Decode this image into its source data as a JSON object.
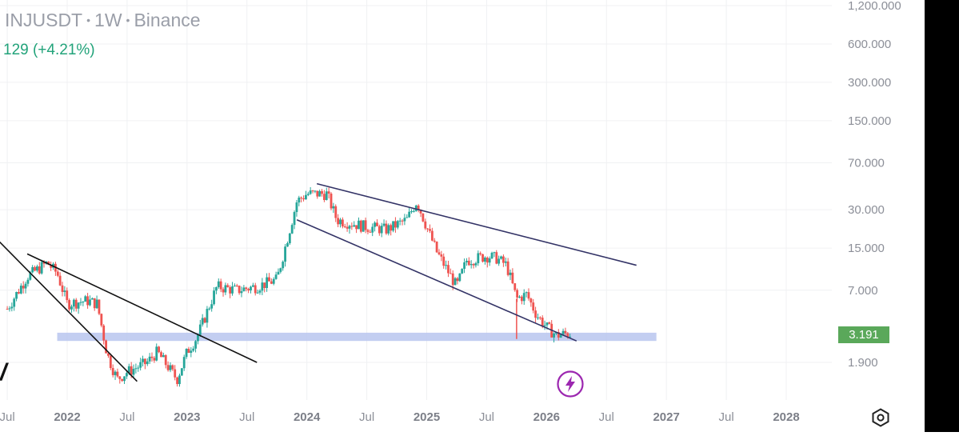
{
  "header": {
    "symbol": "INJUSDT",
    "timeframe": "1W",
    "exchange": "Binance",
    "change": "129 (+4.21%)"
  },
  "price_tag": "3.191",
  "colors": {
    "up": "#26a69a",
    "down": "#ef5350",
    "trendline": "#333366",
    "support_zone": "#b9c6ef",
    "price_tag": "#5aa85a",
    "icon": "#9c27b0"
  },
  "icons": {
    "settings": "settings-icon",
    "lightning": "lightning-icon"
  },
  "chart_data": {
    "type": "candlestick",
    "y_scale": "log",
    "y_ticks": [
      {
        "value": 1200,
        "label": "1,200.000"
      },
      {
        "value": 600,
        "label": "600.000"
      },
      {
        "value": 300,
        "label": "300.000"
      },
      {
        "value": 150,
        "label": "150.000"
      },
      {
        "value": 70,
        "label": "70.000"
      },
      {
        "value": 30,
        "label": "30.000"
      },
      {
        "value": 15,
        "label": "15.000"
      },
      {
        "value": 7,
        "label": "7.000"
      },
      {
        "value": 1.9,
        "label": "1.900"
      }
    ],
    "x_ticks": [
      {
        "date": "2021-07",
        "label": "Jul",
        "year": false
      },
      {
        "date": "2022-01",
        "label": "2022",
        "year": true
      },
      {
        "date": "2022-07",
        "label": "Jul",
        "year": false
      },
      {
        "date": "2023-01",
        "label": "2023",
        "year": true
      },
      {
        "date": "2023-07",
        "label": "Jul",
        "year": false
      },
      {
        "date": "2024-01",
        "label": "2024",
        "year": true
      },
      {
        "date": "2024-07",
        "label": "Jul",
        "year": false
      },
      {
        "date": "2025-01",
        "label": "2025",
        "year": true
      },
      {
        "date": "2025-07",
        "label": "Jul",
        "year": false
      },
      {
        "date": "2026-01",
        "label": "2026",
        "year": true
      },
      {
        "date": "2026-07",
        "label": "Jul",
        "year": false
      },
      {
        "date": "2027-01",
        "label": "2027",
        "year": true
      },
      {
        "date": "2027-07",
        "label": "Jul",
        "year": false
      },
      {
        "date": "2028-01",
        "label": "2028",
        "year": true
      }
    ],
    "price_path": [
      [
        "2021-07",
        5.0
      ],
      [
        "2021-09",
        9.0
      ],
      [
        "2021-11",
        11.5
      ],
      [
        "2021-12",
        9.5
      ],
      [
        "2022-01",
        5.5
      ],
      [
        "2022-03",
        5.8
      ],
      [
        "2022-04",
        5.5
      ],
      [
        "2022-05",
        2.2
      ],
      [
        "2022-06",
        1.4
      ],
      [
        "2022-07",
        1.6
      ],
      [
        "2022-09",
        1.9
      ],
      [
        "2022-10",
        2.3
      ],
      [
        "2022-11",
        1.8
      ],
      [
        "2022-12",
        1.4
      ],
      [
        "2023-01",
        2.3
      ],
      [
        "2023-02",
        3.0
      ],
      [
        "2023-04",
        7.5
      ],
      [
        "2023-06",
        7.0
      ],
      [
        "2023-08",
        7.5
      ],
      [
        "2023-10",
        8.5
      ],
      [
        "2023-12",
        35.0
      ],
      [
        "2024-01",
        40.0
      ],
      [
        "2024-03",
        40.0
      ],
      [
        "2024-04",
        25.0
      ],
      [
        "2024-07",
        22.0
      ],
      [
        "2024-09",
        21.0
      ],
      [
        "2024-11",
        25.0
      ],
      [
        "2024-12",
        35.0
      ],
      [
        "2025-01",
        22.0
      ],
      [
        "2025-02",
        14.0
      ],
      [
        "2025-04",
        7.5
      ],
      [
        "2025-05",
        12.0
      ],
      [
        "2025-07",
        13.0
      ],
      [
        "2025-08",
        12.5
      ],
      [
        "2025-09",
        11.0
      ],
      [
        "2025-10",
        6.0
      ],
      [
        "2025-11",
        6.5
      ],
      [
        "2025-12",
        4.5
      ],
      [
        "2026-01",
        3.6
      ],
      [
        "2026-02",
        3.1
      ],
      [
        "2026-03",
        3.2
      ]
    ],
    "wick_extremes": [
      {
        "date": "2025-10",
        "low": 2.9
      }
    ],
    "last_price": 3.191,
    "trendlines": [
      {
        "from": [
          "2021-05",
          21.0
        ],
        "to": [
          "2022-08",
          1.35
        ]
      },
      {
        "from": [
          "2021-09",
          13.5
        ],
        "to": [
          "2023-08",
          1.9
        ]
      },
      {
        "from": [
          "2024-02",
          48.0
        ],
        "to": [
          "2026-10",
          11.0
        ]
      },
      {
        "from": [
          "2023-12",
          25.0
        ],
        "to": [
          "2026-04",
          2.8
        ]
      }
    ],
    "zones": [
      {
        "from": "2021-12",
        "to": "2026-12",
        "low": 2.8,
        "high": 3.25
      }
    ]
  }
}
